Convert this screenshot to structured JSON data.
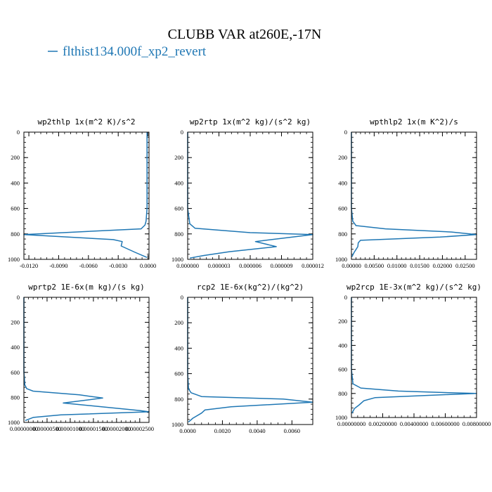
{
  "figure": {
    "title": "CLUBB VAR at260E,-17N",
    "legend": [
      {
        "label": "flthist134.000f_xp2_revert",
        "color": "#1f77b4"
      }
    ]
  },
  "chart_data": [
    {
      "type": "line",
      "title": "wp2thlp  1x(m^2 K)/s^2",
      "xlim": [
        -0.0125,
        0.0001
      ],
      "ylim": [
        1000,
        0
      ],
      "xticks": [
        -0.012,
        -0.009,
        -0.006,
        -0.003,
        0.0
      ],
      "xtick_labels": [
        "-0.0120",
        "-0.0090",
        "-0.0060",
        "-0.0030",
        "0.0000"
      ],
      "yticks": [
        0,
        200,
        400,
        600,
        800,
        1000
      ],
      "ytick_labels": [
        "0",
        "200",
        "400",
        "600",
        "800",
        "1000"
      ],
      "series": [
        {
          "color": "#1f77b4",
          "x": [
            -0.0001,
            -0.0001,
            -0.0001,
            -0.0001,
            -0.0002,
            -0.0003,
            -0.0007,
            -0.0125,
            -0.0035,
            -0.0026,
            -0.0027,
            -0.0013,
            -0.0001
          ],
          "y": [
            0,
            200,
            400,
            600,
            700,
            730,
            760,
            805,
            845,
            860,
            895,
            945,
            985
          ]
        }
      ]
    },
    {
      "type": "line",
      "title": "wp2rtp  1x(m^2 kg)/(s^2 kg)",
      "xlim": [
        0,
        1.2e-05
      ],
      "ylim": [
        1000,
        0
      ],
      "xticks": [
        0,
        3e-06,
        6e-06,
        9e-06,
        1.2e-05
      ],
      "xtick_labels": [
        "0.000000",
        "0.000003",
        "0.000006",
        "0.000009",
        "0.000012"
      ],
      "yticks": [
        0,
        200,
        400,
        600,
        800,
        1000
      ],
      "ytick_labels": [
        "0",
        "200",
        "400",
        "600",
        "800",
        "1000"
      ],
      "series": [
        {
          "color": "#1f77b4",
          "x": [
            0,
            0,
            0,
            0,
            2e-07,
            7e-07,
            6e-06,
            1.2e-05,
            9.5e-06,
            6.5e-06,
            8.5e-06,
            4e-06,
            1.5e-06,
            2e-07
          ],
          "y": [
            0,
            200,
            400,
            600,
            720,
            755,
            790,
            805,
            830,
            860,
            900,
            940,
            970,
            990
          ]
        }
      ]
    },
    {
      "type": "line",
      "title": "wpthlp2  1x(m K^2)/s",
      "xlim": [
        0,
        0.0275
      ],
      "ylim": [
        1000,
        0
      ],
      "xticks": [
        0,
        0.005,
        0.01,
        0.015,
        0.02,
        0.025
      ],
      "xtick_labels": [
        "0.00000",
        "0.00500",
        "0.01000",
        "0.01500",
        "0.02000",
        "0.02500"
      ],
      "yticks": [
        0,
        200,
        400,
        600,
        800,
        1000
      ],
      "ytick_labels": [
        "0",
        "200",
        "400",
        "600",
        "800",
        "1000"
      ],
      "series": [
        {
          "color": "#1f77b4",
          "x": [
            0,
            0,
            0,
            0,
            0.0003,
            0.001,
            0.0075,
            0.022,
            0.0275,
            0.0195,
            0.002,
            0.0015,
            0.0014,
            0.0006,
            0.0001
          ],
          "y": [
            0,
            200,
            400,
            600,
            700,
            735,
            760,
            785,
            805,
            825,
            850,
            870,
            900,
            945,
            980
          ]
        }
      ]
    },
    {
      "type": "line",
      "title": "wprtp2  1E-6x(m kg)/(s kg)",
      "xlim": [
        0,
        2.7e-05
      ],
      "ylim": [
        1000,
        0
      ],
      "xticks": [
        0,
        5e-06,
        1e-05,
        1.5e-05,
        2e-05,
        2.5e-05
      ],
      "xtick_labels": [
        "0.00000000",
        "0.00000500",
        "0.00001000",
        "0.00001500",
        "0.00002000",
        "0.00002500"
      ],
      "yticks": [
        0,
        200,
        400,
        600,
        800,
        1000
      ],
      "ytick_labels": [
        "0",
        "200",
        "400",
        "600",
        "800",
        "1000"
      ],
      "series": [
        {
          "color": "#1f77b4",
          "x": [
            0,
            0,
            0,
            0,
            2e-07,
            6e-07,
            2e-06,
            1.2e-05,
            1.7e-05,
            8.5e-06,
            2.5e-05,
            2.7e-05,
            8e-06,
            2e-06,
            3e-07
          ],
          "y": [
            0,
            200,
            400,
            600,
            700,
            730,
            750,
            780,
            805,
            845,
            905,
            915,
            940,
            960,
            985
          ]
        }
      ]
    },
    {
      "type": "line",
      "title": "rcp2  1E-6x(kg^2)/(kg^2)",
      "xlim": [
        0,
        0.0072
      ],
      "ylim": [
        1000,
        0
      ],
      "xticks": [
        0,
        0.002,
        0.004,
        0.006
      ],
      "xtick_labels": [
        "0.0000",
        "0.0020",
        "0.0040",
        "0.0060"
      ],
      "yticks": [
        0,
        200,
        400,
        600,
        800,
        1000
      ],
      "ytick_labels": [
        "0",
        "200",
        "400",
        "600",
        "800",
        "1000"
      ],
      "series": [
        {
          "color": "#1f77b4",
          "x": [
            0,
            0,
            0,
            0,
            5e-05,
            0.0002,
            0.0008,
            0.0055,
            0.0072,
            0.0025,
            0.001,
            0.0008,
            0.0003,
            5e-05
          ],
          "y": [
            0,
            200,
            400,
            600,
            720,
            750,
            780,
            800,
            825,
            860,
            885,
            910,
            950,
            980
          ]
        }
      ]
    },
    {
      "type": "line",
      "title": "wp2rcp  1E-3x(m^2 kg)/(s^2 kg)",
      "xlim": [
        0,
        0.008
      ],
      "ylim": [
        1000,
        0
      ],
      "xticks": [
        0,
        0.002,
        0.004,
        0.006,
        0.008
      ],
      "xtick_labels": [
        "0.00000000",
        "0.00200000",
        "0.00400000",
        "0.00600000",
        "0.00800000"
      ],
      "yticks": [
        0,
        200,
        400,
        600,
        800,
        1000
      ],
      "ytick_labels": [
        "0",
        "200",
        "400",
        "600",
        "800",
        "1000"
      ],
      "series": [
        {
          "color": "#1f77b4",
          "x": [
            0,
            0,
            0,
            0,
            0.0001,
            0.0006,
            0.003,
            0.0065,
            0.008,
            0.006,
            0.0015,
            0.0008,
            0.0005,
            0.0002,
            3e-05
          ],
          "y": [
            0,
            200,
            400,
            600,
            720,
            755,
            780,
            795,
            800,
            810,
            835,
            860,
            895,
            925,
            965
          ]
        }
      ]
    }
  ]
}
